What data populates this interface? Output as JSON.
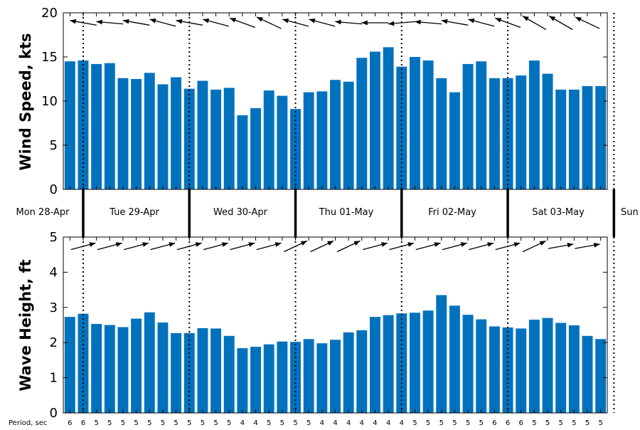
{
  "colors": {
    "bar": "#0072BD",
    "axis": "#000000",
    "arrow": "#000000"
  },
  "day_labels": [
    "Mon 28-Apr",
    "Tue 29-Apr",
    "Wed 30-Apr",
    "Thu 01-May",
    "Fri 02-May",
    "Sat 03-May",
    "Sun"
  ],
  "period_label": "Period, sec",
  "chart_data": [
    {
      "type": "bar",
      "title": "",
      "xlabel": "",
      "ylabel": "Wind Speed, kts",
      "ylim": [
        0,
        20
      ],
      "yticks": [
        0,
        5,
        10,
        15,
        20
      ],
      "grid": false,
      "day_boundaries_at_bar_index": [
        1,
        9,
        17,
        25,
        33,
        41
      ],
      "values": [
        14.5,
        14.6,
        14.2,
        14.3,
        12.6,
        12.5,
        13.2,
        11.9,
        12.7,
        11.4,
        12.3,
        11.3,
        11.5,
        8.4,
        9.2,
        11.2,
        10.6,
        9.1,
        11.0,
        11.1,
        12.4,
        12.2,
        14.9,
        15.6,
        16.1,
        13.9,
        15.0,
        14.6,
        12.6,
        11.0,
        14.2,
        14.5,
        12.6,
        12.6,
        12.9,
        14.6,
        13.1,
        11.3,
        11.3,
        11.7,
        11.7
      ],
      "direction_arrow_angles_deg": [
        190,
        190,
        190,
        185,
        185,
        190,
        190,
        195,
        195,
        190,
        195,
        195,
        200,
        200,
        205,
        205,
        200,
        195,
        195,
        195,
        190,
        185,
        180,
        180,
        165,
        175,
        180,
        185,
        190,
        190,
        190,
        195,
        195,
        200,
        205,
        210,
        210,
        210,
        210,
        205,
        200
      ]
    },
    {
      "type": "bar",
      "title": "",
      "xlabel": "",
      "ylabel": "Wave Height, ft",
      "ylim": [
        0,
        5
      ],
      "yticks": [
        0,
        1,
        2,
        3,
        4,
        5
      ],
      "grid": false,
      "day_boundaries_at_bar_index": [
        1,
        9,
        17,
        25,
        33,
        41
      ],
      "values": [
        2.73,
        2.82,
        2.53,
        2.5,
        2.44,
        2.68,
        2.86,
        2.57,
        2.27,
        2.27,
        2.41,
        2.4,
        2.19,
        1.84,
        1.88,
        1.95,
        2.03,
        2.02,
        2.1,
        1.98,
        2.08,
        2.29,
        2.35,
        2.73,
        2.78,
        2.83,
        2.85,
        2.91,
        3.35,
        3.05,
        2.79,
        2.66,
        2.46,
        2.43,
        2.4,
        2.65,
        2.7,
        2.56,
        2.49,
        2.19,
        2.1
      ],
      "direction_arrow_angles_deg": [
        -15,
        -15,
        -15,
        -15,
        -15,
        -15,
        -15,
        -15,
        -15,
        -15,
        -15,
        -15,
        -15,
        -15,
        -15,
        -15,
        -15,
        -25,
        -25,
        -25,
        -25,
        -25,
        -15,
        -15,
        -15,
        -15,
        -15,
        -15,
        -15,
        -15,
        -15,
        -15,
        -15,
        -15,
        -15,
        -25,
        -25,
        -10,
        -10,
        -10,
        -10
      ],
      "period_values": [
        6,
        6,
        5,
        5,
        5,
        5,
        5,
        5,
        5,
        5,
        5,
        5,
        5,
        4,
        4,
        5,
        5,
        5,
        5,
        4,
        4,
        4,
        4,
        4,
        4,
        4,
        5,
        5,
        5,
        5,
        5,
        5,
        6,
        6,
        6,
        5,
        5,
        5,
        5,
        5,
        5
      ]
    }
  ]
}
